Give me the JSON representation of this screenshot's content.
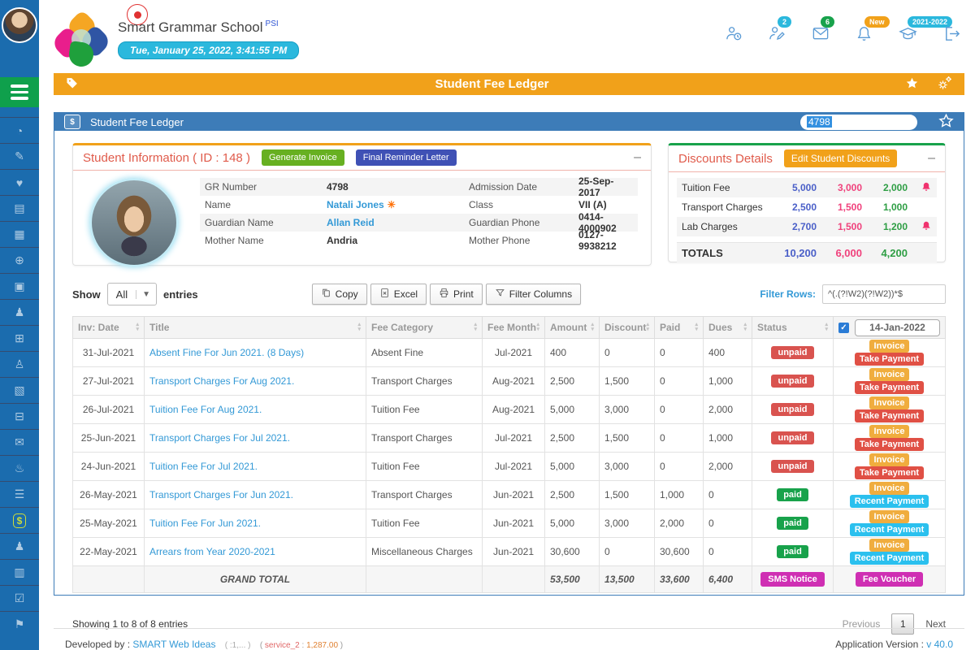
{
  "colors": {
    "sidebar_blue": "#1b6cae",
    "hamburger_green": "#0fa04c",
    "accent_orange": "#f1a11a",
    "panel_blue": "#3d7cb8",
    "status_green": "#18a24b",
    "status_red": "#d9534f",
    "cyan": "#2bb8dd",
    "magenta": "#cf2fb3",
    "link_blue": "#3399d6"
  },
  "sidebar": {
    "active_index": 15,
    "items": [
      {
        "name": "dashboard"
      },
      {
        "name": "student-registration"
      },
      {
        "name": "health"
      },
      {
        "name": "fee-collection"
      },
      {
        "name": "id-cards"
      },
      {
        "name": "website"
      },
      {
        "name": "admissions"
      },
      {
        "name": "students"
      },
      {
        "name": "attendance"
      },
      {
        "name": "teachers"
      },
      {
        "name": "gallery"
      },
      {
        "name": "transport"
      },
      {
        "name": "fee-payments"
      },
      {
        "name": "birthdays"
      },
      {
        "name": "library"
      },
      {
        "name": "fee-ledger"
      },
      {
        "name": "staff"
      },
      {
        "name": "certificates"
      },
      {
        "name": "tasks"
      },
      {
        "name": "alumni"
      }
    ]
  },
  "header": {
    "school_name": "Smart Grammar School",
    "school_suffix": "PSI",
    "datetime": "Tue, January 25, 2022, 3:41:55 PM",
    "icons": [
      {
        "name": "user-clock",
        "badge": "",
        "badge_color": ""
      },
      {
        "name": "user-edit",
        "badge": "2",
        "badge_color": "#2bb8dd"
      },
      {
        "name": "envelope",
        "badge": "6",
        "badge_color": "#18a24b"
      },
      {
        "name": "bell",
        "badge": "New",
        "badge_color": "#f1a11a"
      },
      {
        "name": "grad-cap",
        "badge": "2021-2022",
        "badge_color": "#2bb8dd"
      },
      {
        "name": "logout",
        "badge": "",
        "badge_color": ""
      }
    ]
  },
  "titlebar": {
    "title": "Student Fee Ledger",
    "icons": [
      "tag",
      "favorite-star",
      "settings-gears"
    ]
  },
  "panel": {
    "title": "Student Fee Ledger",
    "icon": "fee-ledger-box",
    "search_value": "4798",
    "icons": [
      "favorite-star"
    ]
  },
  "student_info": {
    "title": "Student Information ( ID : 148 )",
    "generate_invoice_label": "Generate Invoice",
    "final_reminder_label": "Final Reminder Letter",
    "fields": [
      {
        "label1": "GR Number",
        "value1": "4798",
        "link1": false,
        "icon1": false,
        "label2": "Admission Date",
        "value2": "25-Sep-2017"
      },
      {
        "label1": "Name",
        "value1": "Natali Jones",
        "link1": true,
        "icon1": true,
        "label2": "Class",
        "value2": "VII (A)"
      },
      {
        "label1": "Guardian Name",
        "value1": "Allan Reid",
        "link1": true,
        "icon1": false,
        "label2": "Guardian Phone",
        "value2": "0414-4000902"
      },
      {
        "label1": "Mother Name",
        "value1": "Andria",
        "link1": false,
        "icon1": false,
        "label2": "Mother Phone",
        "value2": "0127-9938212"
      }
    ]
  },
  "discounts": {
    "title": "Discounts Details",
    "edit_button_label": "Edit Student Discounts",
    "rows": [
      {
        "name": "Tuition Fee",
        "amount": "5,000",
        "discount": "3,000",
        "net": "2,000",
        "bell": true
      },
      {
        "name": "Transport Charges",
        "amount": "2,500",
        "discount": "1,500",
        "net": "1,000",
        "bell": false
      },
      {
        "name": "Lab Charges",
        "amount": "2,700",
        "discount": "1,500",
        "net": "1,200",
        "bell": true
      }
    ],
    "totals": {
      "label": "TOTALS",
      "amount": "10,200",
      "discount": "6,000",
      "net": "4,200"
    }
  },
  "controls": {
    "show_label": "Show",
    "show_value": "All",
    "entries_label": "entries",
    "export_buttons": [
      "Copy",
      "Excel",
      "Print",
      "Filter Columns"
    ],
    "filter_rows_label": "Filter Rows:",
    "filter_rows_value": "^(.(?!W2)(?!W2))*$"
  },
  "table": {
    "headers": [
      "Inv: Date",
      "Title",
      "Fee Category",
      "Fee Month",
      "Amount",
      "Discount",
      "Paid",
      "Dues",
      "Status"
    ],
    "date_filter_checked": true,
    "date_filter_value": "14-Jan-2022",
    "rows": [
      {
        "date": "31-Jul-2021",
        "title": "Absent Fine For Jun 2021. (8 Days)",
        "category": "Absent Fine",
        "month": "Jul-2021",
        "amount": "400",
        "discount": "0",
        "paid": "0",
        "dues": "400",
        "status": "unpaid",
        "actions": [
          "Invoice",
          "Take Payment"
        ]
      },
      {
        "date": "27-Jul-2021",
        "title": "Transport Charges For Aug 2021.",
        "category": "Transport Charges",
        "month": "Aug-2021",
        "amount": "2,500",
        "discount": "1,500",
        "paid": "0",
        "dues": "1,000",
        "status": "unpaid",
        "actions": [
          "Invoice",
          "Take Payment"
        ]
      },
      {
        "date": "26-Jul-2021",
        "title": "Tuition Fee For Aug 2021.",
        "category": "Tuition Fee",
        "month": "Aug-2021",
        "amount": "5,000",
        "discount": "3,000",
        "paid": "0",
        "dues": "2,000",
        "status": "unpaid",
        "actions": [
          "Invoice",
          "Take Payment"
        ]
      },
      {
        "date": "25-Jun-2021",
        "title": "Transport Charges For Jul 2021.",
        "category": "Transport Charges",
        "month": "Jul-2021",
        "amount": "2,500",
        "discount": "1,500",
        "paid": "0",
        "dues": "1,000",
        "status": "unpaid",
        "actions": [
          "Invoice",
          "Take Payment"
        ]
      },
      {
        "date": "24-Jun-2021",
        "title": "Tuition Fee For Jul 2021.",
        "category": "Tuition Fee",
        "month": "Jul-2021",
        "amount": "5,000",
        "discount": "3,000",
        "paid": "0",
        "dues": "2,000",
        "status": "unpaid",
        "actions": [
          "Invoice",
          "Take Payment"
        ]
      },
      {
        "date": "26-May-2021",
        "title": "Transport Charges For Jun 2021.",
        "category": "Transport Charges",
        "month": "Jun-2021",
        "amount": "2,500",
        "discount": "1,500",
        "paid": "1,000",
        "dues": "0",
        "status": "paid",
        "actions": [
          "Invoice",
          "Recent Payment"
        ]
      },
      {
        "date": "25-May-2021",
        "title": "Tuition Fee For Jun 2021.",
        "category": "Tuition Fee",
        "month": "Jun-2021",
        "amount": "5,000",
        "discount": "3,000",
        "paid": "2,000",
        "dues": "0",
        "status": "paid",
        "actions": [
          "Invoice",
          "Recent Payment"
        ]
      },
      {
        "date": "22-May-2021",
        "title": "Arrears from Year 2020-2021",
        "category": "Miscellaneous Charges",
        "month": "Jun-2021",
        "amount": "30,600",
        "discount": "0",
        "paid": "30,600",
        "dues": "0",
        "status": "paid",
        "actions": [
          "Invoice",
          "Recent Payment"
        ]
      }
    ],
    "grand_total": {
      "label": "GRAND TOTAL",
      "amount": "53,500",
      "discount": "13,500",
      "paid": "33,600",
      "dues": "6,400",
      "sms_button_label": "SMS Notice",
      "voucher_button_label": "Fee Voucher"
    },
    "footer": {
      "showing": "Showing 1 to 8 of 8 entries",
      "previous": "Previous",
      "page": "1",
      "next": "Next"
    }
  },
  "footer": {
    "developed_by": "Developed by :",
    "developer": "SMART Web Ideas",
    "meta1": "( :1,... )",
    "meta2_label": "service_2",
    "meta2_sep": ":",
    "meta2_value": "1,287.00",
    "version_label": "Application Version :",
    "version_value": "v 40.0"
  }
}
